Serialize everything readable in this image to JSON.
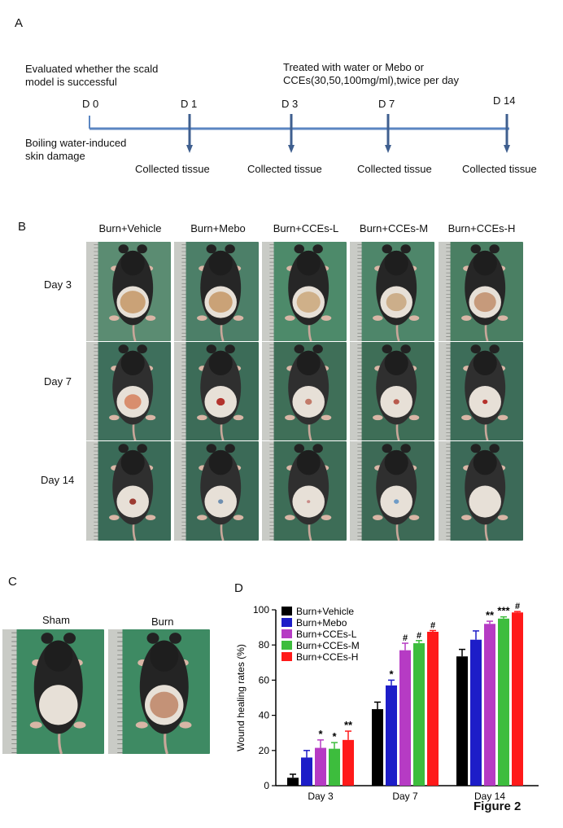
{
  "panels": {
    "a": "A",
    "b": "B",
    "c": "C",
    "d": "D"
  },
  "timeline": {
    "left_note": "Evaluated whether the scald model is successful",
    "right_note": "Treated with water or Mebo or CCEs(30,50,100mg/ml),twice per day",
    "under_note": "Boiling water-induced skin damage",
    "days": [
      "D 0",
      "D 1",
      "D 3",
      "D 7",
      "D 14"
    ],
    "collected_label": "Collected tissue",
    "line_color": "#5b86c2",
    "arrow_color": "#3f5f8f"
  },
  "photo_grid": {
    "columns": [
      "Burn+Vehicle",
      "Burn+Mebo",
      "Burn+CCEs-L",
      "Burn+CCEs-M",
      "Burn+CCEs-H"
    ],
    "rows": [
      "Day 3",
      "Day 7",
      "Day 14"
    ]
  },
  "panel_c": {
    "labels": [
      "Sham",
      "Burn"
    ]
  },
  "figure_caption": "Figure 2",
  "chart_data": {
    "type": "bar",
    "ylabel": "Wound healing rates (%)",
    "xlabel": "",
    "ylim": [
      0,
      100
    ],
    "yticks": [
      0,
      20,
      40,
      60,
      80,
      100
    ],
    "categories": [
      "Day 3",
      "Day 7",
      "Day 14"
    ],
    "legend_position": "top-left",
    "series": [
      {
        "name": "Burn+Vehicle",
        "color": "#000000",
        "values": [
          4.5,
          43.5,
          73.5
        ],
        "errors": [
          2,
          4,
          4
        ],
        "marks": [
          "",
          "",
          ""
        ]
      },
      {
        "name": "Burn+Mebo",
        "color": "#1d1dc8",
        "values": [
          16,
          57,
          83
        ],
        "errors": [
          4,
          3,
          5
        ],
        "marks": [
          "",
          "*",
          ""
        ]
      },
      {
        "name": "Burn+CCEs-L",
        "color": "#b63bc4",
        "values": [
          21.5,
          77,
          92
        ],
        "errors": [
          4.5,
          4,
          1.5
        ],
        "marks": [
          "*",
          "#",
          "**"
        ]
      },
      {
        "name": "Burn+CCEs-M",
        "color": "#3dbd3d",
        "values": [
          21,
          81,
          95
        ],
        "errors": [
          3.5,
          1.5,
          1
        ],
        "marks": [
          "*",
          "#",
          "***"
        ]
      },
      {
        "name": "Burn+CCEs-H",
        "color": "#ff1a1a",
        "values": [
          26,
          87.5,
          98.5
        ],
        "errors": [
          5,
          0.7,
          0.5
        ],
        "marks": [
          "**",
          "#",
          "#"
        ]
      }
    ]
  }
}
